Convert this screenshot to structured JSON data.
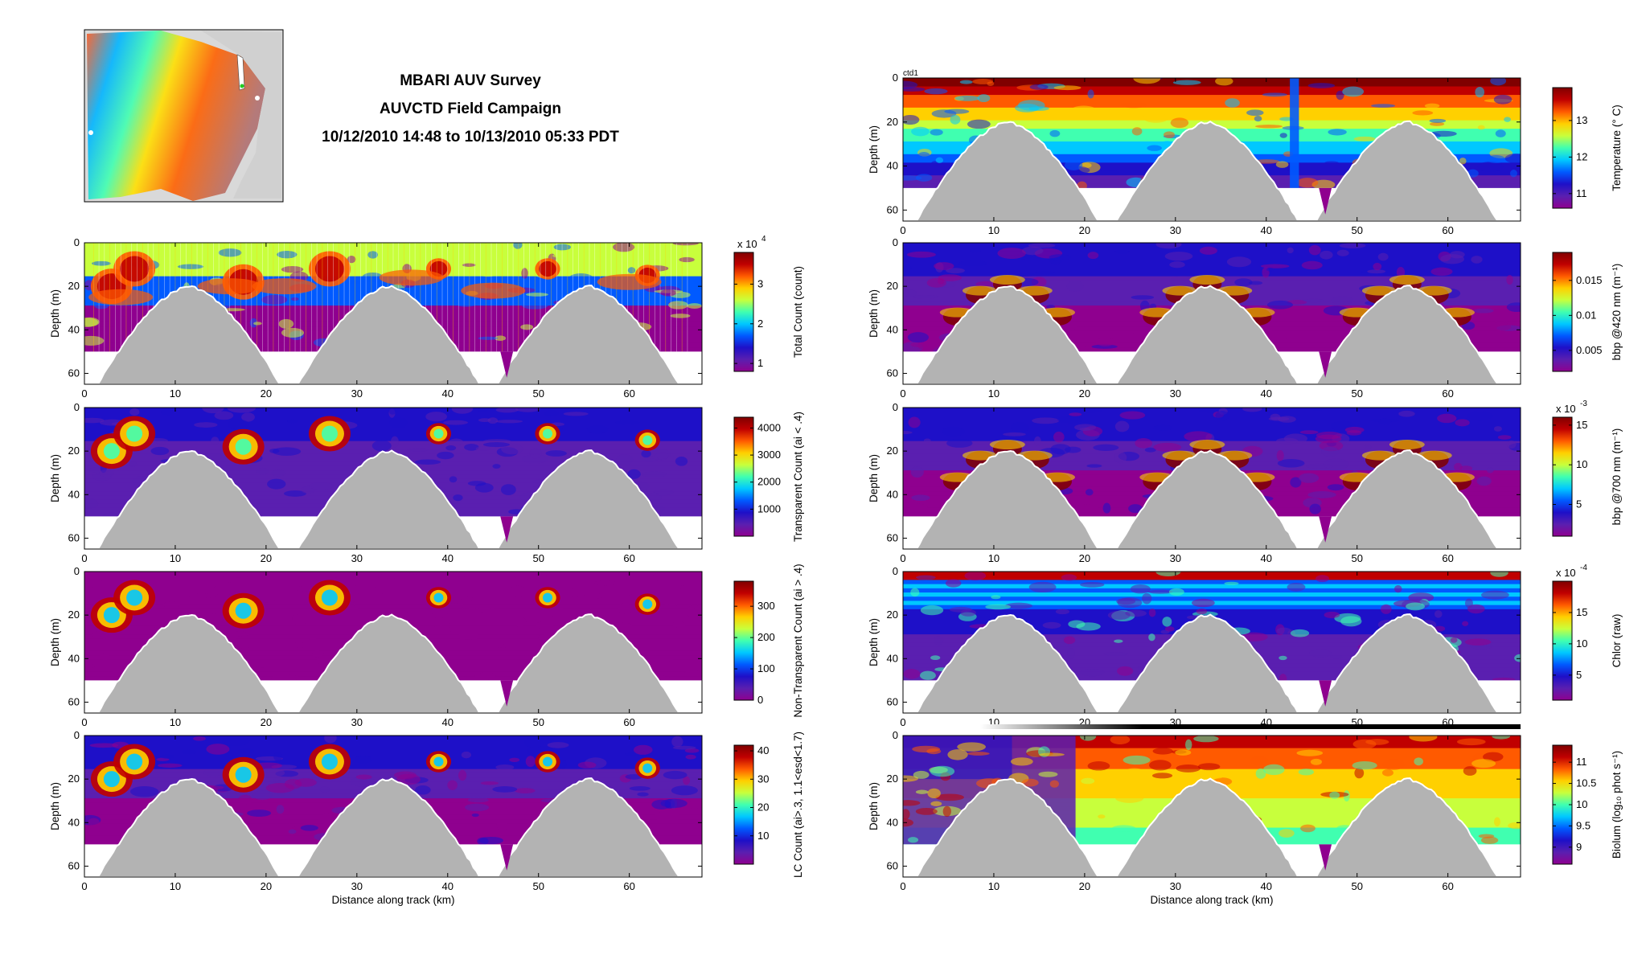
{
  "header": {
    "title_line1": "MBARI AUV Survey",
    "title_line2": "AUVCTD Field Campaign",
    "title_line3": "10/12/2010 14:48 to 10/13/2010 05:33 PDT"
  },
  "colormap": [
    "#8f008f",
    "#5a1fb0",
    "#1e10c8",
    "#005aff",
    "#00c8ff",
    "#40ffb0",
    "#c8ff3c",
    "#ffd000",
    "#ff5a00",
    "#c00000",
    "#800000"
  ],
  "seafloor_color": "#b3b3b3",
  "chart_data": [
    {
      "type": "heatmap",
      "id": "p_total",
      "ylabel": "Depth (m)",
      "xlabel": "",
      "xlim": [
        0,
        68
      ],
      "ylim": [
        65,
        0
      ],
      "xticks": [
        "0",
        "10",
        "20",
        "30",
        "40",
        "50",
        "60"
      ],
      "yticks": [
        "0",
        "20",
        "40",
        "60"
      ],
      "colorbar": {
        "label": "Total Count (count)",
        "range": [
          0.8,
          3.8
        ],
        "ticks": [
          "1",
          "2",
          "3"
        ],
        "exponent": "x 10",
        "exponent_power": "4"
      },
      "hill_centers_km": [
        11.5,
        33.5,
        55.5
      ],
      "hill_top_depth_m": 20,
      "profile_bottom_m": 50,
      "annotation": ""
    },
    {
      "type": "heatmap",
      "id": "p_transparent",
      "ylabel": "Depth (m)",
      "xlabel": "",
      "xlim": [
        0,
        68
      ],
      "ylim": [
        65,
        0
      ],
      "xticks": [
        "0",
        "10",
        "20",
        "30",
        "40",
        "50",
        "60"
      ],
      "yticks": [
        "0",
        "20",
        "40",
        "60"
      ],
      "colorbar": {
        "label": "Transparent Count (ai < .4)",
        "range": [
          0,
          4400
        ],
        "ticks": [
          "1000",
          "2000",
          "3000",
          "4000"
        ],
        "exponent": "",
        "exponent_power": ""
      },
      "hill_centers_km": [
        11.5,
        33.5,
        55.5
      ],
      "hill_top_depth_m": 20,
      "profile_bottom_m": 50,
      "annotation": ""
    },
    {
      "type": "heatmap",
      "id": "p_nontransparent",
      "ylabel": "Depth (m)",
      "xlabel": "",
      "xlim": [
        0,
        68
      ],
      "ylim": [
        65,
        0
      ],
      "xticks": [
        "0",
        "10",
        "20",
        "30",
        "40",
        "50",
        "60"
      ],
      "yticks": [
        "0",
        "20",
        "40",
        "60"
      ],
      "colorbar": {
        "label": "Non-Transparent Count (ai > .4)",
        "range": [
          0,
          380
        ],
        "ticks": [
          "0",
          "100",
          "200",
          "300"
        ],
        "exponent": "",
        "exponent_power": ""
      },
      "hill_centers_km": [
        11.5,
        33.5,
        55.5
      ],
      "hill_top_depth_m": 20,
      "profile_bottom_m": 50,
      "annotation": ""
    },
    {
      "type": "heatmap",
      "id": "p_lc",
      "ylabel": "Depth (m)",
      "xlabel": "Distance along track (km)",
      "xlim": [
        0,
        68
      ],
      "ylim": [
        65,
        0
      ],
      "xticks": [
        "0",
        "10",
        "20",
        "30",
        "40",
        "50",
        "60"
      ],
      "yticks": [
        "0",
        "20",
        "40",
        "60"
      ],
      "colorbar": {
        "label": "LC Count (ai>.3, 1.1<esd<1.7)",
        "range": [
          0,
          42
        ],
        "ticks": [
          "10",
          "20",
          "30",
          "40"
        ],
        "exponent": "",
        "exponent_power": ""
      },
      "hill_centers_km": [
        11.5,
        33.5,
        55.5
      ],
      "hill_top_depth_m": 20,
      "profile_bottom_m": 50,
      "annotation": ""
    },
    {
      "type": "heatmap",
      "id": "p_temp",
      "ylabel": "Depth (m)",
      "xlabel": "",
      "xlim": [
        0,
        68
      ],
      "ylim": [
        65,
        0
      ],
      "xticks": [
        "0",
        "10",
        "20",
        "30",
        "40",
        "50",
        "60"
      ],
      "yticks": [
        "0",
        "20",
        "40",
        "60"
      ],
      "colorbar": {
        "label": "Temperature (° C)",
        "range": [
          10.6,
          13.9
        ],
        "ticks": [
          "11",
          "12",
          "13"
        ],
        "exponent": "",
        "exponent_power": ""
      },
      "hill_centers_km": [
        11.5,
        33.5,
        55.5
      ],
      "hill_top_depth_m": 20,
      "profile_bottom_m": 50,
      "annotation": "ctd1"
    },
    {
      "type": "heatmap",
      "id": "p_bbp420",
      "ylabel": "Depth (m)",
      "xlabel": "",
      "xlim": [
        0,
        68
      ],
      "ylim": [
        65,
        0
      ],
      "xticks": [
        "0",
        "10",
        "20",
        "30",
        "40",
        "50",
        "60"
      ],
      "yticks": [
        "0",
        "20",
        "40",
        "60"
      ],
      "colorbar": {
        "label": "bbp @420 nm (m⁻¹)",
        "range": [
          0.002,
          0.019
        ],
        "ticks": [
          "0.005",
          "0.01",
          "0.015"
        ],
        "exponent": "",
        "exponent_power": ""
      },
      "hill_centers_km": [
        11.5,
        33.5,
        55.5
      ],
      "hill_top_depth_m": 20,
      "profile_bottom_m": 50,
      "annotation": ""
    },
    {
      "type": "heatmap",
      "id": "p_bbp700",
      "ylabel": "Depth (m)",
      "xlabel": "",
      "xlim": [
        0,
        68
      ],
      "ylim": [
        65,
        0
      ],
      "xticks": [
        "0",
        "10",
        "20",
        "30",
        "40",
        "50",
        "60"
      ],
      "yticks": [
        "0",
        "20",
        "40",
        "60"
      ],
      "colorbar": {
        "label": "bbp @700 nm (m⁻¹)",
        "range": [
          1,
          16
        ],
        "ticks": [
          "5",
          "10",
          "15"
        ],
        "exponent": "x 10",
        "exponent_power": "-3"
      },
      "hill_centers_km": [
        11.5,
        33.5,
        55.5
      ],
      "hill_top_depth_m": 20,
      "profile_bottom_m": 50,
      "annotation": ""
    },
    {
      "type": "heatmap",
      "id": "p_chlor",
      "ylabel": "Depth (m)",
      "xlabel": "",
      "xlim": [
        0,
        68
      ],
      "ylim": [
        65,
        0
      ],
      "xticks": [
        "0",
        "10",
        "20",
        "30",
        "40",
        "50",
        "60"
      ],
      "yticks": [
        "0",
        "20",
        "40",
        "60"
      ],
      "colorbar": {
        "label": "Chlor (raw)",
        "range": [
          1,
          20
        ],
        "ticks": [
          "5",
          "10",
          "15"
        ],
        "exponent": "x 10",
        "exponent_power": "-4"
      },
      "hill_centers_km": [
        11.5,
        33.5,
        55.5
      ],
      "hill_top_depth_m": 20,
      "profile_bottom_m": 50,
      "annotation": ""
    },
    {
      "type": "heatmap",
      "id": "p_biolum",
      "ylabel": "Depth (m)",
      "xlabel": "Distance along track (km)",
      "xlim": [
        0,
        68
      ],
      "ylim": [
        65,
        0
      ],
      "xticks": [
        "0",
        "10",
        "20",
        "30",
        "40",
        "50",
        "60"
      ],
      "yticks": [
        "0",
        "20",
        "40",
        "60"
      ],
      "colorbar": {
        "label": "Biolum (log₁₀ phot s⁻¹)",
        "range": [
          8.6,
          11.4
        ],
        "ticks": [
          "9",
          "9.5",
          "10",
          "10.5",
          "11"
        ],
        "exponent": "",
        "exponent_power": ""
      },
      "hill_centers_km": [
        11.5,
        33.5,
        55.5
      ],
      "hill_top_depth_m": 20,
      "profile_bottom_m": 50,
      "annotation": ""
    }
  ]
}
